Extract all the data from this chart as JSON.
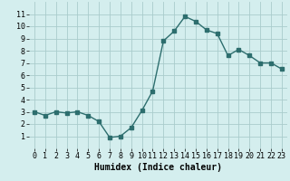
{
  "x": [
    0,
    1,
    2,
    3,
    4,
    5,
    6,
    7,
    8,
    9,
    10,
    11,
    12,
    13,
    14,
    15,
    16,
    17,
    18,
    19,
    20,
    21,
    22,
    23
  ],
  "y": [
    3.0,
    2.7,
    3.0,
    2.9,
    3.0,
    2.7,
    2.2,
    0.9,
    1.0,
    1.7,
    3.1,
    4.7,
    8.8,
    9.6,
    10.8,
    10.4,
    9.7,
    9.4,
    7.6,
    8.1,
    7.6,
    7.0,
    7.0,
    6.5
  ],
  "line_color": "#2d6e6e",
  "marker": "s",
  "markersize": 2.5,
  "linewidth": 1.0,
  "background_color": "#d4eeee",
  "grid_color": "#aacccc",
  "xlabel": "Humidex (Indice chaleur)",
  "xlabel_fontsize": 7,
  "tick_fontsize": 6,
  "xlim": [
    -0.5,
    23.5
  ],
  "ylim": [
    0,
    12
  ],
  "yticks": [
    1,
    2,
    3,
    4,
    5,
    6,
    7,
    8,
    9,
    10,
    11
  ],
  "xticks": [
    0,
    1,
    2,
    3,
    4,
    5,
    6,
    7,
    8,
    9,
    10,
    11,
    12,
    13,
    14,
    15,
    16,
    17,
    18,
    19,
    20,
    21,
    22,
    23
  ]
}
